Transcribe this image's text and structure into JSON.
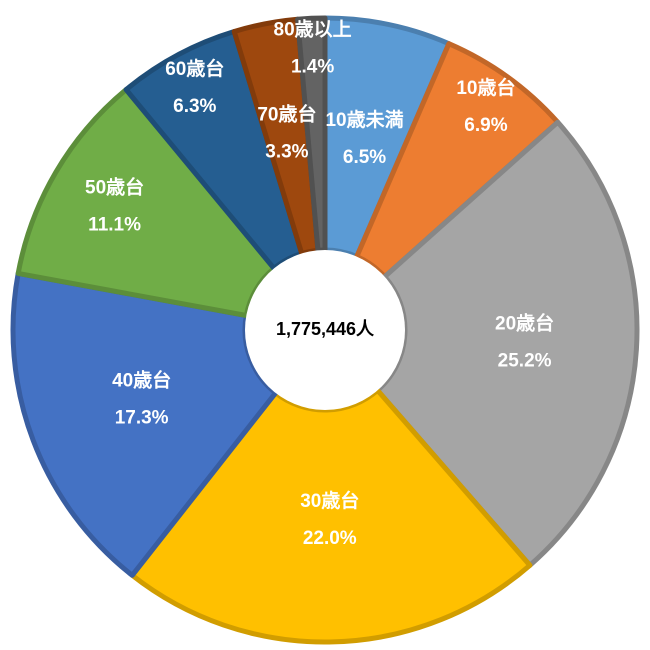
{
  "chart_data": {
    "type": "donut",
    "center_label": "1,775,446人",
    "categories": [
      "10歳未満",
      "10歳台",
      "20歳台",
      "30歳台",
      "40歳台",
      "50歳台",
      "60歳台",
      "70歳台",
      "80歳以上"
    ],
    "values": [
      6.5,
      6.9,
      25.2,
      22.0,
      17.3,
      11.1,
      6.3,
      3.3,
      1.4
    ],
    "value_labels": [
      "6.5%",
      "6.9%",
      "25.2%",
      "22.0%",
      "17.3%",
      "11.1%",
      "6.3%",
      "3.3%",
      "1.4%"
    ],
    "colors": [
      "#5b9bd5",
      "#ed7d31",
      "#a5a5a5",
      "#ffc000",
      "#4472c4",
      "#70ad47",
      "#255e91",
      "#9e480e",
      "#636363"
    ]
  }
}
